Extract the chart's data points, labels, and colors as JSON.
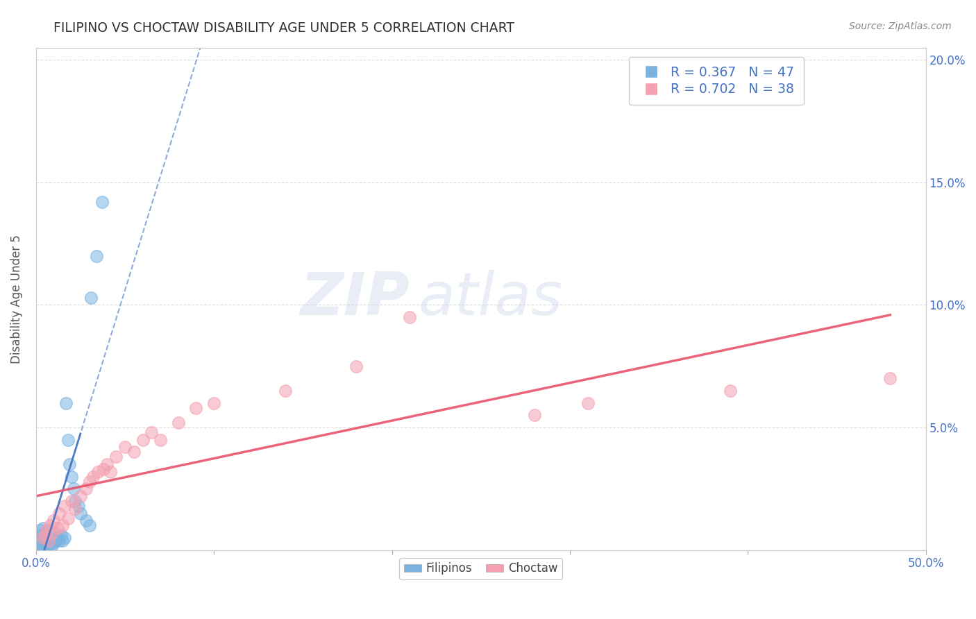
{
  "title": "FILIPINO VS CHOCTAW DISABILITY AGE UNDER 5 CORRELATION CHART",
  "source": "Source: ZipAtlas.com",
  "xlabel": "",
  "ylabel": "Disability Age Under 5",
  "xlim": [
    0.0,
    0.5
  ],
  "ylim": [
    0.0,
    0.205
  ],
  "xticks": [
    0.0,
    0.1,
    0.2,
    0.3,
    0.4,
    0.5
  ],
  "xticklabels": [
    "0.0%",
    "",
    "",
    "",
    "",
    "50.0%"
  ],
  "yticks_left": [
    0.0,
    0.05,
    0.1,
    0.15,
    0.2
  ],
  "yticks_right": [
    0.0,
    0.05,
    0.1,
    0.15,
    0.2
  ],
  "yticklabels_right": [
    "",
    "5.0%",
    "10.0%",
    "15.0%",
    "20.0%"
  ],
  "filipino_R": 0.367,
  "filipino_N": 47,
  "choctaw_R": 0.702,
  "choctaw_N": 38,
  "filipino_color": "#7ab3e0",
  "choctaw_color": "#f4a0b0",
  "filipino_line_color": "#4472c4",
  "choctaw_line_color": "#e8536a",
  "legend_text_color": "#4472c4",
  "watermark_zip": "ZIP",
  "watermark_atlas": "atlas",
  "filipino_x": [
    0.001,
    0.001,
    0.002,
    0.002,
    0.002,
    0.003,
    0.003,
    0.003,
    0.004,
    0.004,
    0.004,
    0.004,
    0.005,
    0.005,
    0.005,
    0.006,
    0.006,
    0.006,
    0.006,
    0.007,
    0.007,
    0.007,
    0.008,
    0.008,
    0.009,
    0.009,
    0.01,
    0.01,
    0.011,
    0.012,
    0.013,
    0.014,
    0.015,
    0.016,
    0.017,
    0.018,
    0.019,
    0.02,
    0.021,
    0.022,
    0.024,
    0.025,
    0.028,
    0.03,
    0.031,
    0.034,
    0.037
  ],
  "filipino_y": [
    0.002,
    0.005,
    0.001,
    0.003,
    0.008,
    0.002,
    0.004,
    0.006,
    0.001,
    0.003,
    0.005,
    0.009,
    0.002,
    0.004,
    0.006,
    0.001,
    0.003,
    0.005,
    0.007,
    0.002,
    0.004,
    0.008,
    0.003,
    0.006,
    0.002,
    0.005,
    0.003,
    0.007,
    0.004,
    0.005,
    0.004,
    0.006,
    0.004,
    0.005,
    0.06,
    0.045,
    0.035,
    0.03,
    0.025,
    0.02,
    0.018,
    0.015,
    0.012,
    0.01,
    0.103,
    0.12,
    0.142
  ],
  "choctaw_x": [
    0.004,
    0.005,
    0.006,
    0.007,
    0.008,
    0.009,
    0.01,
    0.012,
    0.013,
    0.015,
    0.016,
    0.018,
    0.02,
    0.022,
    0.025,
    0.028,
    0.03,
    0.032,
    0.035,
    0.038,
    0.04,
    0.042,
    0.045,
    0.05,
    0.055,
    0.06,
    0.065,
    0.07,
    0.08,
    0.09,
    0.1,
    0.14,
    0.18,
    0.21,
    0.28,
    0.31,
    0.39,
    0.48
  ],
  "choctaw_y": [
    0.005,
    0.006,
    0.008,
    0.004,
    0.01,
    0.007,
    0.012,
    0.009,
    0.015,
    0.01,
    0.018,
    0.013,
    0.02,
    0.017,
    0.022,
    0.025,
    0.028,
    0.03,
    0.032,
    0.033,
    0.035,
    0.032,
    0.038,
    0.042,
    0.04,
    0.045,
    0.048,
    0.045,
    0.052,
    0.058,
    0.06,
    0.065,
    0.075,
    0.095,
    0.055,
    0.06,
    0.065,
    0.07
  ]
}
